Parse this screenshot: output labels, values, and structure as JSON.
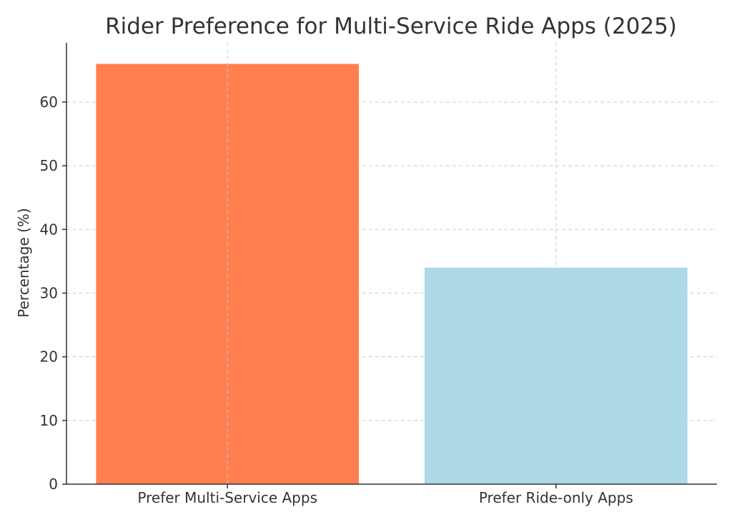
{
  "chart_data": {
    "type": "bar",
    "title": "Rider Preference for Multi-Service Ride Apps (2025)",
    "xlabel": "",
    "ylabel": "Percentage (%)",
    "categories": [
      "Prefer Multi-Service Apps",
      "Prefer Ride-only Apps"
    ],
    "values": [
      66,
      34
    ],
    "colors": [
      "#ff7f50",
      "#add8e6"
    ],
    "ylim": [
      0,
      69.3
    ],
    "yticks": [
      0,
      10,
      20,
      30,
      40,
      50,
      60
    ],
    "grid": true
  }
}
